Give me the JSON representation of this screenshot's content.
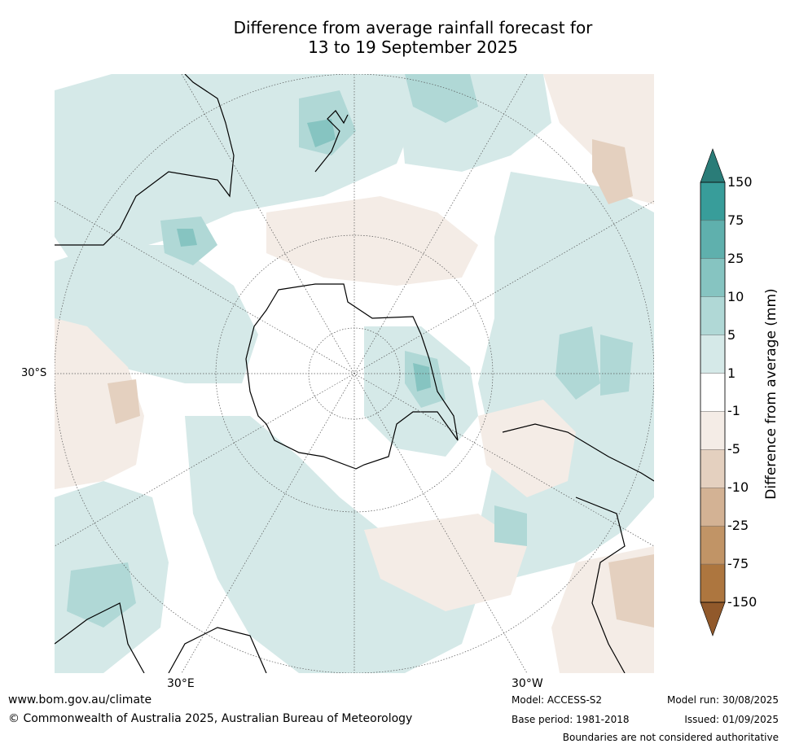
{
  "title": {
    "line1": "Difference from average rainfall forecast for",
    "line2": "13 to 19 September 2025"
  },
  "map": {
    "projection": "south-polar stereographic",
    "lat_label": "30°S",
    "lon_labels": [
      "30°E",
      "30°W"
    ]
  },
  "colorbar": {
    "title": "Difference from average (mm)",
    "tick_labels": [
      "150",
      "75",
      "25",
      "10",
      "5",
      "1",
      "-1",
      "-5",
      "-10",
      "-25",
      "-75",
      "-150"
    ],
    "colors": [
      "#2a7c78",
      "#389d9a",
      "#5fb0ad",
      "#86c4c1",
      "#b0d8d6",
      "#d5e9e8",
      "#ffffff",
      "#f4ece6",
      "#e4d0bf",
      "#d3b294",
      "#c19466",
      "#ad763f",
      "#91592b"
    ]
  },
  "footer": {
    "url": "www.bom.gov.au/climate",
    "copyright": "© Commonwealth of Australia 2025, Australian Bureau of Meteorology",
    "model": "Model: ACCESS-S2",
    "base_period": "Base period: 1981-2018",
    "model_run": "Model run: 30/08/2025",
    "issued": "Issued: 01/09/2025",
    "disclaimer": "Boundaries are not considered authoritative"
  }
}
